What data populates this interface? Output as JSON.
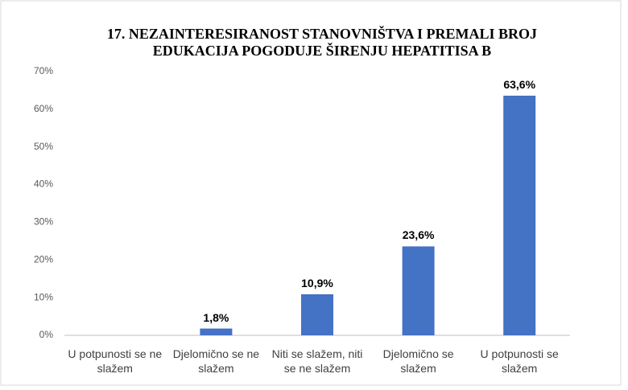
{
  "chart_data": {
    "type": "bar",
    "title": "17. NEZAINTERESIRANOST STANOVNIŠTVA I PREMALI BROJ EDUKACIJA POGODUJE ŠIRENJU HEPATITISA B",
    "categories": [
      "U potpunosti se ne slažem",
      "Djelomično se ne slažem",
      "Niti se slažem, niti se ne slažem",
      "Djelomično se slažem",
      "U potpunosti se slažem"
    ],
    "values": [
      0,
      1.8,
      10.9,
      23.6,
      63.6
    ],
    "value_labels": [
      null,
      "1,8%",
      "10,9%",
      "23,6%",
      "63,6%"
    ],
    "color": "#4472c4",
    "ylim": [
      0,
      70
    ],
    "yticks": [
      {
        "value": 0,
        "label": "0%"
      },
      {
        "value": 10,
        "label": "10%"
      },
      {
        "value": 20,
        "label": "20%"
      },
      {
        "value": 30,
        "label": "30%"
      },
      {
        "value": 40,
        "label": "40%"
      },
      {
        "value": 50,
        "label": "50%"
      },
      {
        "value": 60,
        "label": "60%"
      },
      {
        "value": 70,
        "label": "70%"
      }
    ],
    "grid": false
  }
}
